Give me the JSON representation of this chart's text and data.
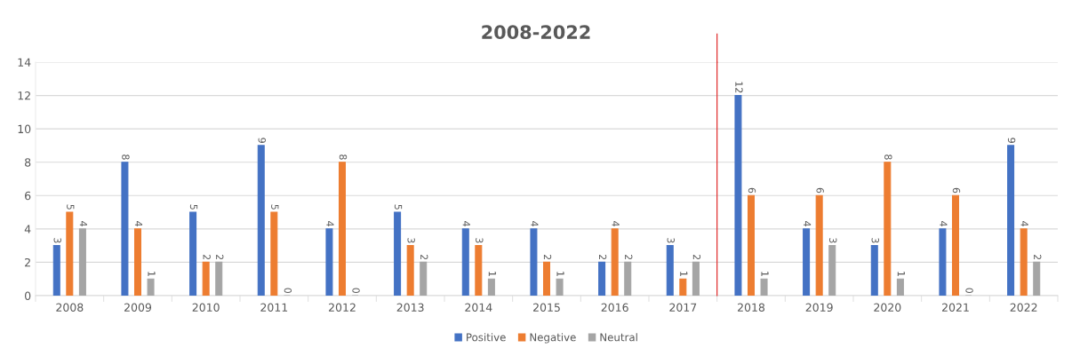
{
  "chart_data": {
    "type": "bar",
    "title": "2008-2022",
    "categories": [
      "2008",
      "2009",
      "2010",
      "2011",
      "2012",
      "2013",
      "2014",
      "2015",
      "2016",
      "2017",
      "2018",
      "2019",
      "2020",
      "2021",
      "2022"
    ],
    "series": [
      {
        "name": "Positive",
        "color": "#4472c4",
        "values": [
          3,
          8,
          5,
          9,
          4,
          5,
          4,
          4,
          2,
          3,
          12,
          4,
          3,
          4,
          9
        ]
      },
      {
        "name": "Negative",
        "color": "#ed7d31",
        "values": [
          5,
          4,
          2,
          5,
          8,
          3,
          3,
          2,
          4,
          1,
          6,
          6,
          8,
          6,
          4
        ]
      },
      {
        "name": "Neutral",
        "color": "#a5a5a5",
        "values": [
          4,
          1,
          2,
          0,
          0,
          2,
          1,
          1,
          2,
          2,
          1,
          3,
          1,
          0,
          2
        ]
      }
    ],
    "ylim": [
      0,
      14
    ],
    "yticks": [
      0,
      2,
      4,
      6,
      8,
      10,
      12,
      14
    ],
    "grid": "y",
    "legend": "bottom",
    "data_labels": true,
    "ref_lines": [
      {
        "axis": "x",
        "value": "2018",
        "color": "#e03030"
      }
    ]
  }
}
